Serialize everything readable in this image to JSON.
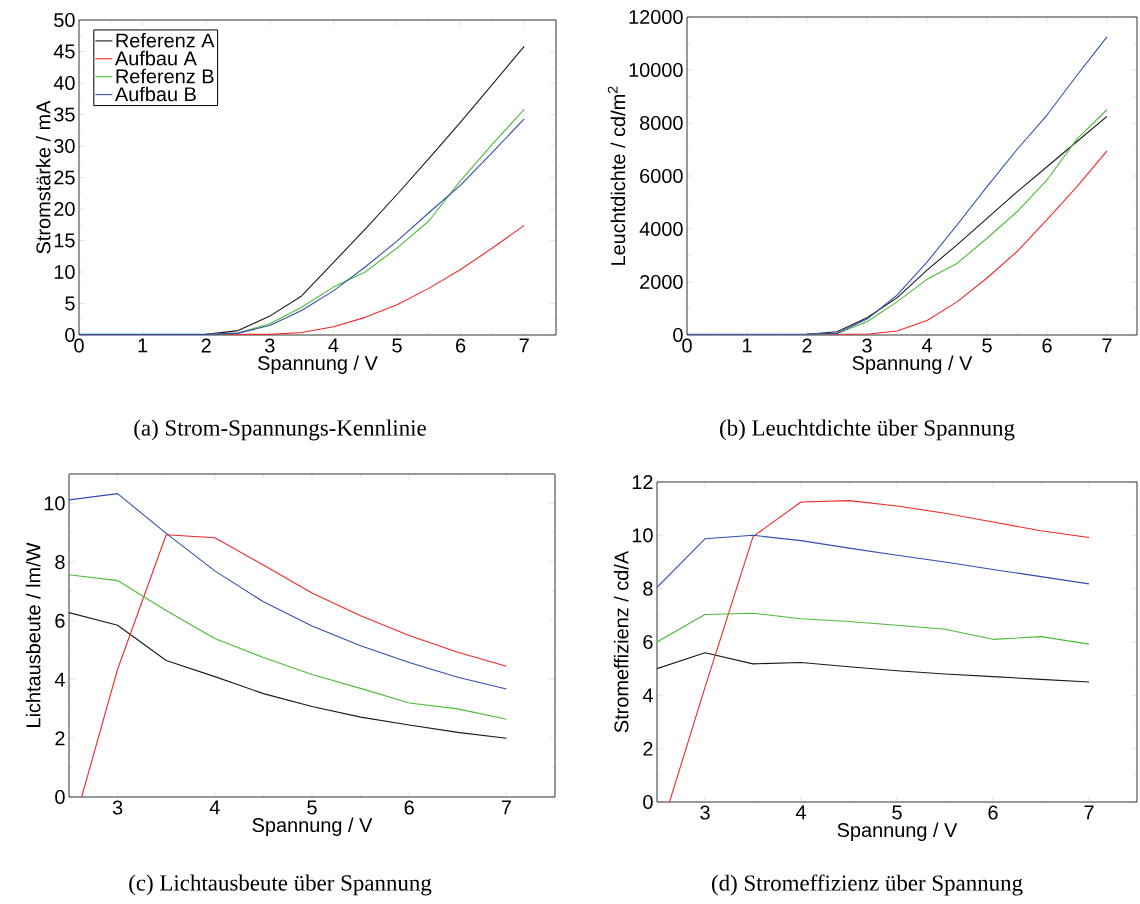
{
  "chart_data": [
    {
      "type": "line",
      "title": "(a) Strom-Spannungs-Kennlinie",
      "xlabel": "Spannung / V",
      "ylabel": "Stromstärke / mA",
      "legend": "top left",
      "x": [
        0,
        0.5,
        1,
        1.5,
        2,
        2.5,
        3,
        3.5,
        4,
        4.5,
        5,
        5.5,
        6,
        6.5,
        7
      ],
      "xlim": [
        0,
        7.5
      ],
      "xticks": [
        0,
        1,
        2,
        3,
        4,
        5,
        6,
        7
      ],
      "ylim": [
        0,
        50
      ],
      "yticks": [
        0,
        5,
        10,
        15,
        20,
        25,
        30,
        35,
        40,
        45,
        50
      ],
      "series": [
        {
          "name": "Referenz A",
          "color": "#1a1a1a",
          "values": [
            null,
            null,
            null,
            null,
            0.1,
            0.7,
            3.0,
            6.2,
            11.5,
            16.8,
            22.3,
            28.0,
            33.8,
            39.8,
            45.8
          ]
        },
        {
          "name": "Aufbau A",
          "color": "#ee2a2a",
          "values": [
            null,
            null,
            null,
            null,
            0.1,
            0.1,
            0.1,
            0.4,
            1.3,
            2.8,
            4.8,
            7.4,
            10.4,
            13.8,
            17.4
          ]
        },
        {
          "name": "Referenz B",
          "color": "#4dbb3a",
          "values": [
            null,
            null,
            null,
            null,
            0.1,
            0.3,
            1.8,
            4.4,
            7.6,
            10.0,
            13.8,
            18.1,
            24.5,
            30.3,
            35.8
          ]
        },
        {
          "name": "Aufbau B",
          "color": "#3050b0",
          "values": [
            0.1,
            0.1,
            0.1,
            0.1,
            0.1,
            0.3,
            1.5,
            3.9,
            7.0,
            10.8,
            14.9,
            19.4,
            23.8,
            29.0,
            34.3
          ]
        }
      ]
    },
    {
      "type": "line",
      "title": "(b) Leuchtdichte über Spannung",
      "xlabel": "Spannung / V",
      "ylabel": "Leuchtdichte / cd/m$^{2}$",
      "x": [
        0,
        0.5,
        1,
        1.5,
        2,
        2.5,
        3,
        3.5,
        4,
        4.5,
        5,
        5.5,
        6,
        6.5,
        7
      ],
      "xlim": [
        0,
        7.5
      ],
      "xticks": [
        0,
        1,
        2,
        3,
        4,
        5,
        6,
        7
      ],
      "ylim": [
        0,
        12000
      ],
      "yticks": [
        0,
        2000,
        4000,
        6000,
        8000,
        10000,
        12000
      ],
      "series": [
        {
          "color": "#1a1a1a",
          "values": [
            null,
            null,
            null,
            null,
            30,
            120,
            650,
            1400,
            2450,
            3400,
            4400,
            5400,
            6350,
            7300,
            8250
          ]
        },
        {
          "color": "#ee2a2a",
          "values": [
            null,
            null,
            null,
            null,
            30,
            30,
            30,
            150,
            550,
            1250,
            2150,
            3150,
            4350,
            5600,
            6950
          ]
        },
        {
          "color": "#4dbb3a",
          "values": [
            null,
            null,
            null,
            null,
            30,
            60,
            500,
            1250,
            2100,
            2700,
            3650,
            4650,
            5850,
            7400,
            8500
          ]
        },
        {
          "color": "#3050b0",
          "values": [
            30,
            30,
            30,
            30,
            30,
            60,
            600,
            1500,
            2750,
            4150,
            5600,
            7000,
            8300,
            9800,
            11250
          ]
        }
      ]
    },
    {
      "type": "line",
      "title": "(c) Lichtausbeute über Spannung",
      "xlabel": "Spannung / V",
      "ylabel": "Lichtausbeute / lm/W",
      "x": [
        2.5,
        3,
        3.5,
        4,
        4.5,
        5,
        5.5,
        6,
        6.5,
        7
      ],
      "xlim": [
        2.5,
        7.5
      ],
      "xticks": [
        3,
        4,
        5,
        6,
        7
      ],
      "ylim": [
        0,
        11
      ],
      "yticks": [
        0,
        2,
        4,
        6,
        8,
        10
      ],
      "series": [
        {
          "color": "#1a1a1a",
          "values": [
            6.28,
            5.85,
            4.65,
            4.1,
            3.52,
            3.08,
            2.72,
            2.45,
            2.2,
            2.0
          ]
        },
        {
          "color": "#ee2a2a",
          "x": [
            2.63,
            3,
            3.5,
            4,
            4.5,
            5,
            5.5,
            6,
            6.5,
            7
          ],
          "values": [
            0,
            4.35,
            8.93,
            8.83,
            7.9,
            6.95,
            6.17,
            5.5,
            4.93,
            4.45
          ]
        },
        {
          "color": "#4dbb3a",
          "values": [
            7.57,
            7.37,
            6.35,
            5.4,
            4.75,
            4.17,
            3.7,
            3.2,
            3.0,
            2.65
          ]
        },
        {
          "color": "#3050b0",
          "values": [
            10.12,
            10.33,
            8.98,
            7.7,
            6.65,
            5.82,
            5.15,
            4.58,
            4.08,
            3.68
          ]
        }
      ]
    },
    {
      "type": "line",
      "title": "(d) Stromeffizienz über Spannung",
      "xlabel": "Spannung / V",
      "ylabel": "Stromeffizienz / cd/A",
      "x": [
        2.5,
        3,
        3.5,
        4,
        4.5,
        5,
        5.5,
        6,
        6.5,
        7
      ],
      "xlim": [
        2.5,
        7.5
      ],
      "xticks": [
        3,
        4,
        5,
        6,
        7
      ],
      "ylim": [
        0,
        12
      ],
      "yticks": [
        0,
        2,
        4,
        6,
        8,
        10,
        12
      ],
      "series": [
        {
          "color": "#1a1a1a",
          "values": [
            5.0,
            5.6,
            5.18,
            5.23,
            5.07,
            4.92,
            4.8,
            4.7,
            4.6,
            4.5
          ]
        },
        {
          "color": "#ee2a2a",
          "x": [
            2.63,
            3,
            3.5,
            4,
            4.5,
            5,
            5.5,
            6,
            6.5,
            7
          ],
          "values": [
            0,
            4.3,
            9.95,
            11.25,
            11.3,
            11.1,
            10.83,
            10.5,
            10.17,
            9.92
          ]
        },
        {
          "color": "#4dbb3a",
          "values": [
            6.0,
            7.03,
            7.08,
            6.87,
            6.77,
            6.63,
            6.48,
            6.1,
            6.2,
            5.92
          ]
        },
        {
          "color": "#3050b0",
          "values": [
            8.05,
            9.87,
            10.0,
            9.8,
            9.52,
            9.25,
            9.0,
            8.72,
            8.45,
            8.18
          ]
        }
      ]
    }
  ]
}
